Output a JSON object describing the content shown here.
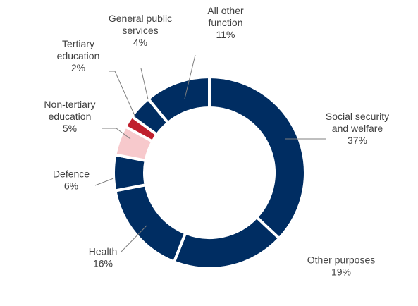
{
  "chart_data": {
    "type": "pie",
    "variant": "donut",
    "title": "",
    "unit": "%",
    "slices": [
      {
        "label_lines": [
          "Social security",
          "and welfare"
        ],
        "value": 37,
        "value_text": "37%",
        "color": "#002D62"
      },
      {
        "label_lines": [
          "Other purposes"
        ],
        "value": 19,
        "value_text": "19%",
        "color": "#002D62"
      },
      {
        "label_lines": [
          "Health"
        ],
        "value": 16,
        "value_text": "16%",
        "color": "#002D62"
      },
      {
        "label_lines": [
          "Defence"
        ],
        "value": 6,
        "value_text": "6%",
        "color": "#002D62"
      },
      {
        "label_lines": [
          "Non-tertiary",
          "education"
        ],
        "value": 5,
        "value_text": "5%",
        "color": "#F7C9CC"
      },
      {
        "label_lines": [
          "Tertiary",
          "education"
        ],
        "value": 2,
        "value_text": "2%",
        "color": "#C0202E"
      },
      {
        "label_lines": [
          "General public",
          "services"
        ],
        "value": 4,
        "value_text": "4%",
        "color": "#002D62"
      },
      {
        "label_lines": [
          "All other",
          "function"
        ],
        "value": 11,
        "value_text": "11%",
        "color": "#002D62"
      }
    ],
    "legend": "none",
    "separator_color": "#FFFFFF"
  }
}
